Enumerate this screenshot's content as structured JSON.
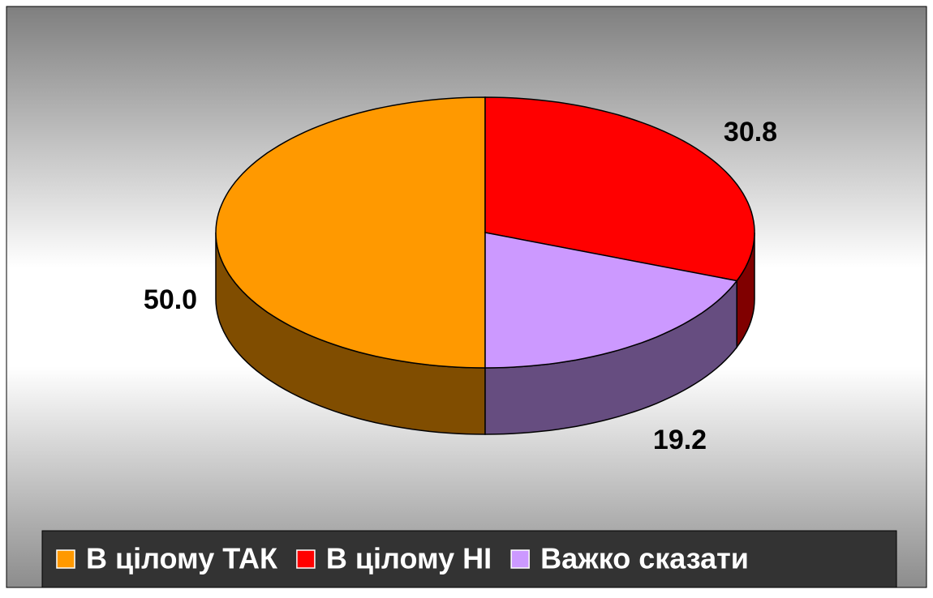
{
  "chart_data": {
    "type": "pie",
    "categories": [
      "В цілому ТАК",
      "В цілому НІ",
      "Важко сказати"
    ],
    "values": [
      50,
      30.8,
      19.2
    ],
    "value_labels": [
      "50.0",
      "30.8",
      "19.2"
    ],
    "colors": [
      "#ff9900",
      "#ff0000",
      "#cc99ff"
    ]
  }
}
